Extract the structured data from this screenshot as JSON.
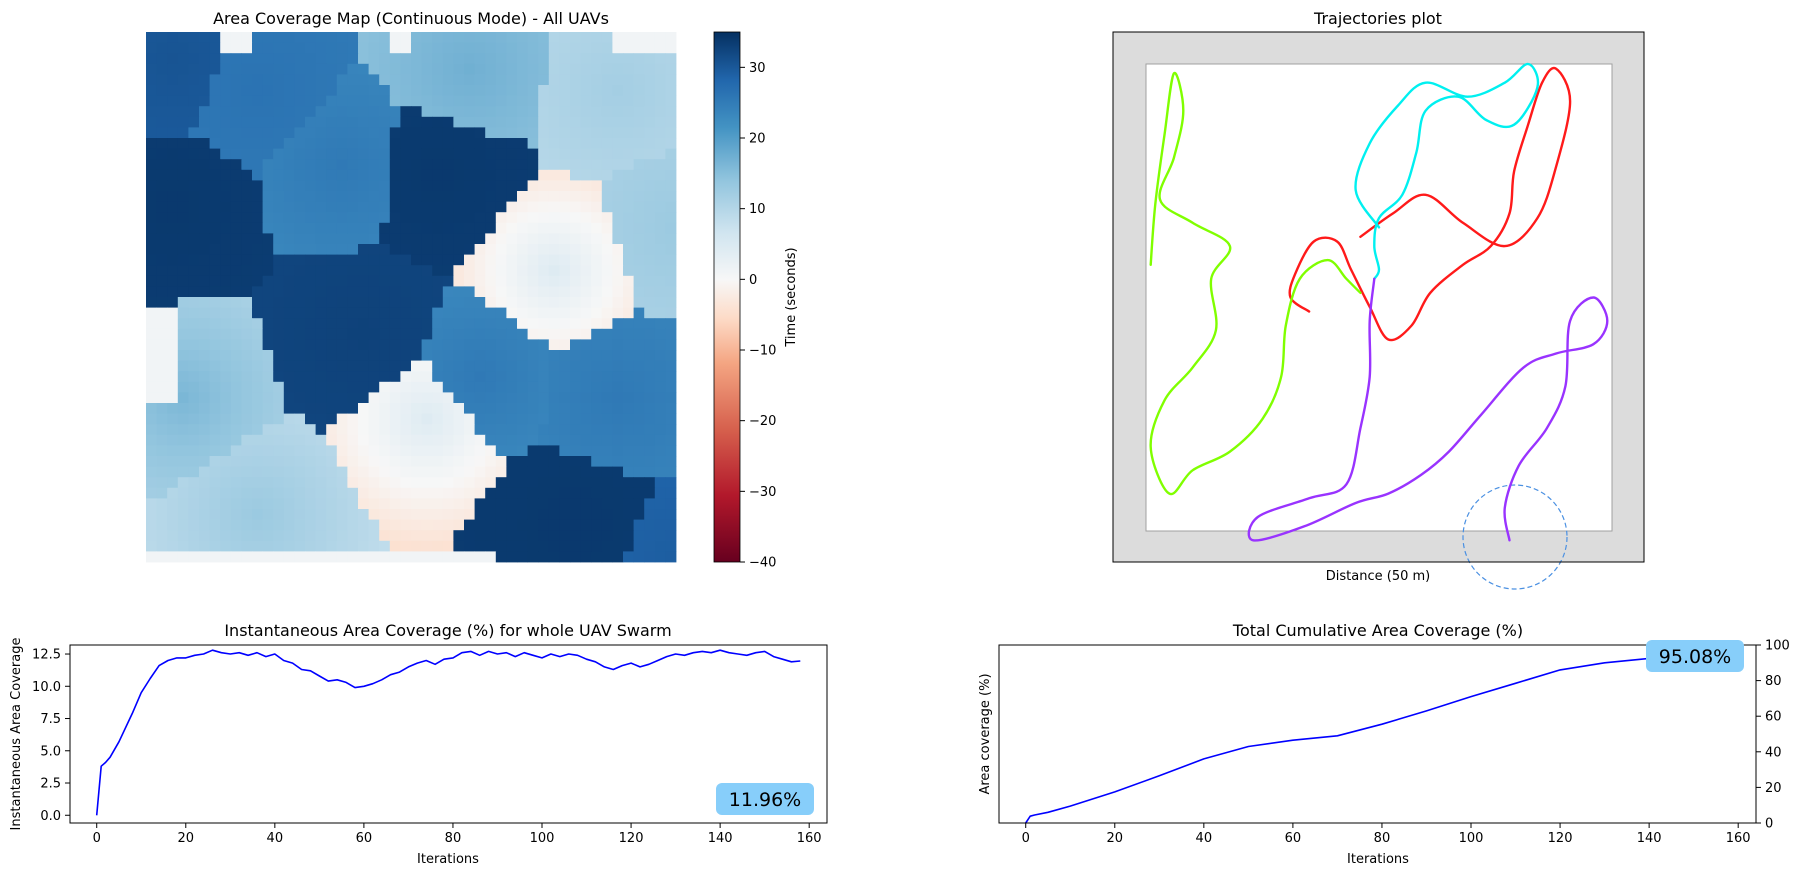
{
  "chart_data": [
    {
      "type": "heatmap",
      "title": "Area Coverage Map (Continuous Mode) - All UAVs",
      "colorbar": {
        "label": "Time (seconds)",
        "range": [
          -40,
          35
        ],
        "ticks": [
          "30",
          "20",
          "10",
          "0",
          "−10",
          "−20",
          "−30",
          "−40"
        ],
        "tick_values": [
          30,
          20,
          10,
          0,
          -10,
          -20,
          -30,
          -40
        ],
        "colormap": "RdBu"
      },
      "grid_rows": 50,
      "grid_cols": 50,
      "zones": [
        {
          "cx": 2,
          "cy": 2,
          "t": 31,
          "g": 0.05
        },
        {
          "cx": 2,
          "cy": 16,
          "t": 34,
          "g": 0.02
        },
        {
          "cx": 10,
          "cy": 5,
          "t": 27,
          "g": 0.06
        },
        {
          "cx": 18,
          "cy": 12,
          "t": 26,
          "g": 0.12
        },
        {
          "cx": 27,
          "cy": 13,
          "t": 34,
          "g": 0.02
        },
        {
          "cx": 20,
          "cy": 28,
          "t": 33,
          "g": 0.02
        },
        {
          "cx": 30,
          "cy": 3,
          "t": 18,
          "g": 0.14
        },
        {
          "cx": 44,
          "cy": 5,
          "t": 13,
          "g": 0.12
        },
        {
          "cx": 38,
          "cy": 22,
          "t": 6,
          "g": 0.45
        },
        {
          "cx": 50,
          "cy": 18,
          "t": 14,
          "g": 0.1
        },
        {
          "cx": 31,
          "cy": 32,
          "t": 26,
          "g": 0.15
        },
        {
          "cx": 44,
          "cy": 34,
          "t": 26,
          "g": 0.1
        },
        {
          "cx": 3,
          "cy": 34,
          "t": 17,
          "g": 0.25
        },
        {
          "cx": 10,
          "cy": 45,
          "t": 14,
          "g": 0.2
        },
        {
          "cx": 26,
          "cy": 36,
          "t": 6,
          "g": 0.4
        },
        {
          "cx": 40,
          "cy": 46,
          "t": 34,
          "g": 0.01
        },
        {
          "cx": 50,
          "cy": 50,
          "t": 30,
          "g": 0.05
        }
      ]
    },
    {
      "type": "line",
      "title": "Trajectories plot",
      "xlabel": "Distance  (50 m)",
      "ylabel": "",
      "series": [
        {
          "color": "#ff1a1a",
          "points": [
            [
              0.35,
              0.53
            ],
            [
              0.31,
              0.5
            ],
            [
              0.32,
              0.45
            ],
            [
              0.36,
              0.38
            ],
            [
              0.41,
              0.38
            ],
            [
              0.44,
              0.44
            ],
            [
              0.48,
              0.52
            ],
            [
              0.52,
              0.59
            ],
            [
              0.57,
              0.56
            ],
            [
              0.61,
              0.49
            ],
            [
              0.68,
              0.43
            ],
            [
              0.74,
              0.39
            ],
            [
              0.78,
              0.32
            ],
            [
              0.79,
              0.23
            ],
            [
              0.82,
              0.13
            ],
            [
              0.85,
              0.04
            ],
            [
              0.88,
              0.01
            ],
            [
              0.91,
              0.08
            ],
            [
              0.88,
              0.22
            ],
            [
              0.84,
              0.33
            ],
            [
              0.77,
              0.39
            ],
            [
              0.68,
              0.34
            ],
            [
              0.6,
              0.28
            ],
            [
              0.53,
              0.32
            ],
            [
              0.46,
              0.37
            ]
          ]
        },
        {
          "color": "#00f0f0",
          "points": [
            [
              0.5,
              0.35
            ],
            [
              0.45,
              0.27
            ],
            [
              0.48,
              0.17
            ],
            [
              0.54,
              0.09
            ],
            [
              0.6,
              0.04
            ],
            [
              0.69,
              0.07
            ],
            [
              0.77,
              0.04
            ],
            [
              0.82,
              0.0
            ],
            [
              0.84,
              0.05
            ],
            [
              0.79,
              0.13
            ],
            [
              0.73,
              0.12
            ],
            [
              0.67,
              0.07
            ],
            [
              0.6,
              0.1
            ],
            [
              0.58,
              0.19
            ],
            [
              0.55,
              0.28
            ],
            [
              0.5,
              0.33
            ],
            [
              0.49,
              0.39
            ],
            [
              0.5,
              0.44
            ],
            [
              0.49,
              0.46
            ]
          ]
        },
        {
          "color": "#80ff00",
          "points": [
            [
              0.01,
              0.43
            ],
            [
              0.02,
              0.3
            ],
            [
              0.04,
              0.15
            ],
            [
              0.06,
              0.02
            ],
            [
              0.08,
              0.1
            ],
            [
              0.06,
              0.2
            ],
            [
              0.03,
              0.29
            ],
            [
              0.1,
              0.34
            ],
            [
              0.18,
              0.39
            ],
            [
              0.14,
              0.46
            ],
            [
              0.15,
              0.57
            ],
            [
              0.1,
              0.65
            ],
            [
              0.04,
              0.72
            ],
            [
              0.01,
              0.82
            ],
            [
              0.05,
              0.92
            ],
            [
              0.1,
              0.87
            ],
            [
              0.18,
              0.83
            ],
            [
              0.25,
              0.76
            ],
            [
              0.29,
              0.67
            ],
            [
              0.3,
              0.56
            ],
            [
              0.33,
              0.46
            ],
            [
              0.39,
              0.42
            ],
            [
              0.43,
              0.46
            ],
            [
              0.46,
              0.49
            ]
          ]
        },
        {
          "color": "#9933ff",
          "points": [
            [
              0.49,
              0.46
            ],
            [
              0.48,
              0.55
            ],
            [
              0.48,
              0.67
            ],
            [
              0.46,
              0.78
            ],
            [
              0.43,
              0.9
            ],
            [
              0.35,
              0.93
            ],
            [
              0.24,
              0.97
            ],
            [
              0.23,
              1.02
            ],
            [
              0.34,
              0.99
            ],
            [
              0.45,
              0.94
            ],
            [
              0.52,
              0.92
            ],
            [
              0.59,
              0.88
            ],
            [
              0.65,
              0.83
            ],
            [
              0.72,
              0.75
            ],
            [
              0.81,
              0.65
            ],
            [
              0.88,
              0.62
            ],
            [
              0.96,
              0.6
            ],
            [
              0.99,
              0.55
            ],
            [
              0.96,
              0.5
            ],
            [
              0.91,
              0.55
            ],
            [
              0.9,
              0.69
            ],
            [
              0.86,
              0.78
            ],
            [
              0.8,
              0.86
            ],
            [
              0.77,
              0.95
            ],
            [
              0.78,
              1.02
            ]
          ]
        }
      ]
    },
    {
      "type": "line",
      "title": "Instantaneous Area Coverage (%) for whole UAV Swarm",
      "xlabel": "Iterations",
      "ylabel": "Instantaneous Area Coverage",
      "xlim": [
        -6,
        164
      ],
      "ylim": [
        -0.6,
        13.2
      ],
      "xticks": [
        0,
        20,
        40,
        60,
        80,
        100,
        120,
        140,
        160
      ],
      "yticks": [
        0.0,
        2.5,
        5.0,
        7.5,
        10.0,
        12.5
      ],
      "ytick_labels": [
        "0.0",
        "2.5",
        "5.0",
        "7.5",
        "10.0",
        "12.5"
      ],
      "series": [
        {
          "color": "#0000ff",
          "x": [
            0,
            1,
            2,
            3,
            5,
            8,
            10,
            12,
            14,
            16,
            18,
            20,
            22,
            24,
            26,
            28,
            30,
            32,
            34,
            36,
            38,
            40,
            42,
            44,
            46,
            48,
            50,
            52,
            54,
            56,
            58,
            60,
            62,
            64,
            66,
            68,
            70,
            72,
            74,
            76,
            78,
            80,
            82,
            84,
            86,
            88,
            90,
            92,
            94,
            96,
            98,
            100,
            102,
            104,
            106,
            108,
            110,
            112,
            114,
            116,
            118,
            120,
            122,
            124,
            126,
            128,
            130,
            132,
            134,
            136,
            138,
            140,
            142,
            144,
            146,
            148,
            150,
            152,
            154,
            156,
            158
          ],
          "y": [
            0.0,
            3.8,
            4.1,
            4.5,
            5.7,
            7.9,
            9.5,
            10.6,
            11.6,
            12.0,
            12.2,
            12.2,
            12.4,
            12.5,
            12.8,
            12.6,
            12.5,
            12.6,
            12.4,
            12.6,
            12.3,
            12.5,
            12.0,
            11.8,
            11.3,
            11.2,
            10.8,
            10.4,
            10.5,
            10.3,
            9.9,
            10.0,
            10.2,
            10.5,
            10.9,
            11.1,
            11.5,
            11.8,
            12.0,
            11.7,
            12.1,
            12.2,
            12.6,
            12.7,
            12.4,
            12.7,
            12.5,
            12.6,
            12.3,
            12.6,
            12.4,
            12.2,
            12.5,
            12.3,
            12.5,
            12.4,
            12.1,
            11.9,
            11.5,
            11.3,
            11.6,
            11.8,
            11.5,
            11.7,
            12.0,
            12.3,
            12.5,
            12.4,
            12.6,
            12.7,
            12.6,
            12.8,
            12.6,
            12.5,
            12.4,
            12.6,
            12.7,
            12.3,
            12.1,
            11.9,
            11.96
          ]
        }
      ],
      "annotation": "11.96%"
    },
    {
      "type": "line",
      "title": "Total Cumulative Area Coverage (%)",
      "xlabel": "Iterations",
      "ylabel": "Area coverage (%)",
      "xlim": [
        -6,
        164
      ],
      "ylim": [
        0,
        100
      ],
      "xticks": [
        0,
        20,
        40,
        60,
        80,
        100,
        120,
        140,
        160
      ],
      "yticks": [
        0,
        20,
        40,
        60,
        80,
        100
      ],
      "ytick_labels": [
        "0",
        "20",
        "40",
        "60",
        "80",
        "100"
      ],
      "series": [
        {
          "color": "#0000ff",
          "x": [
            0,
            1,
            2,
            5,
            10,
            20,
            30,
            40,
            50,
            60,
            70,
            80,
            90,
            100,
            110,
            120,
            130,
            140,
            150,
            158
          ],
          "y": [
            0,
            3.8,
            4.5,
            6,
            9.5,
            17.5,
            26.5,
            36,
            43,
            46.5,
            49,
            55.5,
            63,
            71,
            78.5,
            86,
            90,
            92.5,
            94.5,
            95.08
          ]
        }
      ],
      "annotation": "95.08%"
    }
  ]
}
